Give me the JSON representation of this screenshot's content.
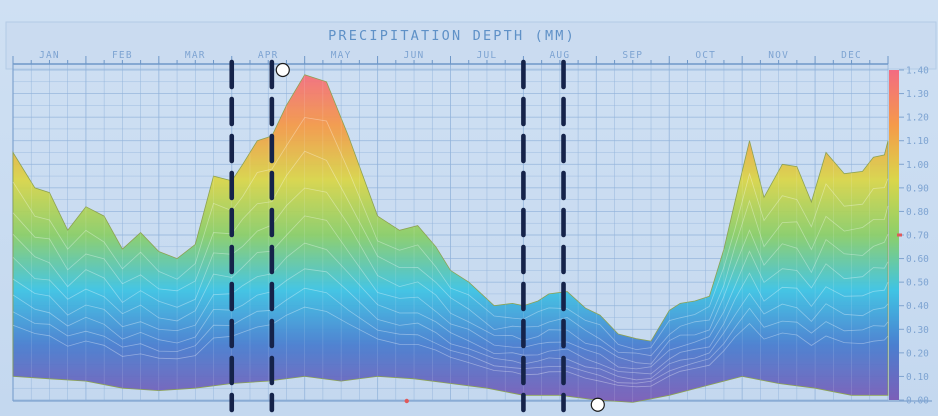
{
  "chart_data": {
    "type": "area",
    "title": "Precipitation Depth (mm)",
    "xlabel": "",
    "ylabel": "",
    "categories": [
      "JAN",
      "FEB",
      "MAR",
      "APR",
      "MAY",
      "JUN",
      "JUL",
      "AUG",
      "SEP",
      "OCT",
      "NOV",
      "DEC"
    ],
    "x_range": [
      0,
      12
    ],
    "ylim": [
      0.0,
      1.4
    ],
    "yticks": [
      "1.40",
      "1.30",
      "1.20",
      "1.10",
      "1.00",
      "0.90",
      "0.80",
      "0.70",
      "0.60",
      "0.50",
      "0.40",
      "0.30",
      "0.20",
      "0.10",
      "0.00"
    ],
    "grid": true,
    "legend": "none",
    "colorscale": [
      "#7b5fb8",
      "#4a7fd0",
      "#3fc4e4",
      "#8ccf6a",
      "#dad64a",
      "#f59a4a",
      "#f36b82"
    ],
    "series": [
      {
        "x": [
          0,
          0.3,
          0.5,
          0.75,
          1.0,
          1.25,
          1.5,
          1.75,
          2.0,
          2.25,
          2.5,
          2.75,
          3.0,
          3.15,
          3.35,
          3.55,
          3.75,
          4.0,
          4.3,
          4.6,
          5.0,
          5.3,
          5.55,
          5.8,
          6.0,
          6.25,
          6.6,
          6.85,
          7.0,
          7.2,
          7.35,
          7.6,
          7.85,
          8.05,
          8.3,
          8.55,
          8.75,
          9.0,
          9.15,
          9.35,
          9.55,
          9.75,
          9.9,
          10.1,
          10.3,
          10.55,
          10.75,
          10.95,
          11.15,
          11.4,
          11.65,
          11.8,
          11.95,
          12.0
        ],
        "y": [
          1.05,
          0.9,
          0.88,
          0.72,
          0.82,
          0.78,
          0.64,
          0.71,
          0.63,
          0.6,
          0.66,
          0.95,
          0.93,
          1.0,
          1.1,
          1.12,
          1.25,
          1.38,
          1.35,
          1.12,
          0.78,
          0.72,
          0.74,
          0.65,
          0.55,
          0.5,
          0.4,
          0.41,
          0.4,
          0.42,
          0.45,
          0.46,
          0.39,
          0.36,
          0.28,
          0.26,
          0.25,
          0.38,
          0.41,
          0.42,
          0.44,
          0.64,
          0.84,
          1.1,
          0.86,
          1.0,
          0.99,
          0.84,
          1.05,
          0.96,
          0.97,
          1.03,
          1.04,
          1.1
        ]
      }
    ],
    "inner_profiles_fraction": [
      1.0,
      0.86,
      0.74,
      0.63,
      0.53,
      0.44,
      0.36,
      0.29,
      0.23
    ],
    "base_profile": {
      "x": [
        0,
        0.5,
        1.0,
        1.5,
        2.0,
        2.5,
        3.0,
        3.5,
        4.0,
        4.5,
        5.0,
        5.5,
        6.0,
        6.5,
        7.0,
        7.5,
        8.0,
        8.5,
        9.0,
        9.5,
        10.0,
        10.5,
        11.0,
        11.5,
        12.0
      ],
      "y": [
        0.1,
        0.09,
        0.08,
        0.05,
        0.04,
        0.05,
        0.07,
        0.08,
        0.1,
        0.08,
        0.1,
        0.09,
        0.07,
        0.05,
        0.02,
        0.02,
        0.0,
        -0.01,
        0.02,
        0.06,
        0.1,
        0.07,
        0.05,
        0.02,
        0.02
      ]
    },
    "highlight_bands": [
      {
        "start": 3.0,
        "end": 3.55
      },
      {
        "start": 7.0,
        "end": 7.55
      }
    ],
    "markers": [
      {
        "x": 3.7,
        "y": 1.4
      },
      {
        "x": 8.02,
        "y": -0.02
      }
    ],
    "accent_ticks": [
      {
        "axis": "x",
        "value": 5.4
      },
      {
        "axis": "y",
        "value": 0.7
      }
    ]
  }
}
